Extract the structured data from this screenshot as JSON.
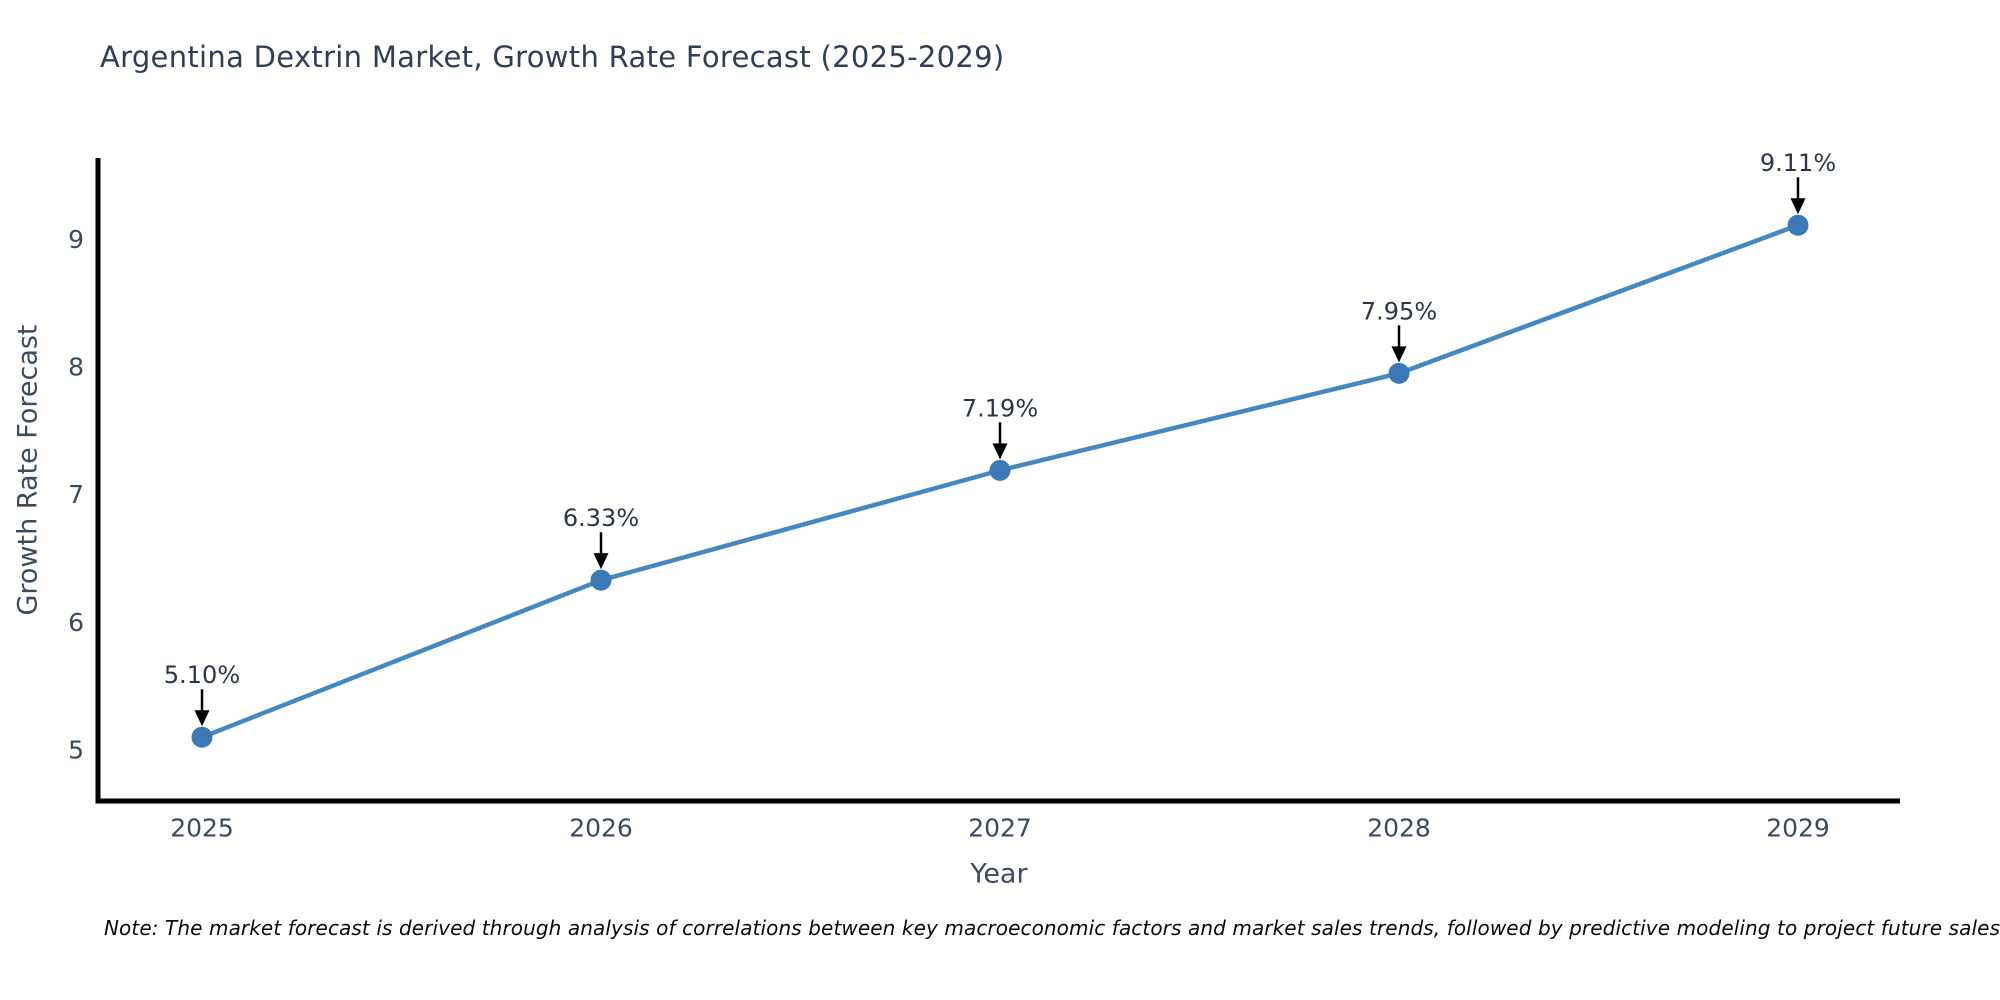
{
  "chart_data": {
    "type": "line",
    "title": "Argentina Dextrin Market, Growth Rate Forecast (2025-2029)",
    "xlabel": "Year",
    "ylabel": "Growth Rate Forecast",
    "categories": [
      "2025",
      "2026",
      "2027",
      "2028",
      "2029"
    ],
    "values": [
      5.1,
      6.33,
      7.19,
      7.95,
      9.11
    ],
    "point_labels": [
      "5.10%",
      "6.33%",
      "7.19%",
      "7.95%",
      "9.11%"
    ],
    "yticks": [
      5,
      6,
      7,
      8,
      9
    ],
    "ylim": [
      4.6,
      9.65
    ],
    "grid": false,
    "legend": "none",
    "line_color": "#4587c1",
    "marker_color": "#3a79b6",
    "axis_color": "#000000",
    "annotation_color": "#000000",
    "tick_color": "#3b4a63",
    "label_color": "#2b3648",
    "title_color": "#2f3e58"
  },
  "note": {
    "text": "Note: The market forecast is derived through analysis of correlations between key macroeconomic factors and market sales trends, followed by predictive modeling to project future sales."
  }
}
